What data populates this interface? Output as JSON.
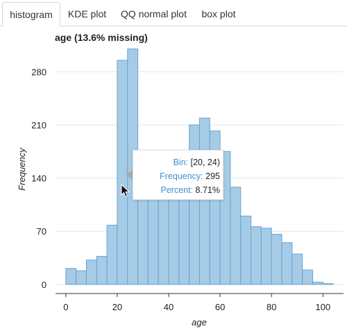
{
  "tabs": [
    {
      "label": "histogram",
      "active": true
    },
    {
      "label": "KDE plot",
      "active": false
    },
    {
      "label": "QQ normal plot",
      "active": false
    },
    {
      "label": "box plot",
      "active": false
    }
  ],
  "chart_title": "age (13.6% missing)",
  "colors": {
    "bar_fill": "#a6cbe6",
    "bar_stroke": "#6aa3cf",
    "grid": "#e6e6e6",
    "tooltip_key": "#3f8fcf"
  },
  "chart_data": {
    "type": "bar",
    "title": "age (13.6% missing)",
    "xlabel": "age",
    "ylabel": "Frequency",
    "xlim": [
      -4,
      108
    ],
    "ylim": [
      -12,
      315
    ],
    "x_ticks": [
      0,
      20,
      40,
      60,
      80,
      100
    ],
    "y_ticks": [
      0,
      70,
      140,
      210,
      280
    ],
    "grid": "horizontal",
    "bins": [
      {
        "x0": 0,
        "x1": 4,
        "value": 21
      },
      {
        "x0": 4,
        "x1": 8,
        "value": 18
      },
      {
        "x0": 8,
        "x1": 12,
        "value": 32
      },
      {
        "x0": 12,
        "x1": 16,
        "value": 37
      },
      {
        "x0": 16,
        "x1": 20,
        "value": 78
      },
      {
        "x0": 20,
        "x1": 24,
        "value": 295
      },
      {
        "x0": 24,
        "x1": 28,
        "value": 310
      },
      {
        "x0": 28,
        "x1": 32,
        "value": 160
      },
      {
        "x0": 32,
        "x1": 36,
        "value": 140
      },
      {
        "x0": 36,
        "x1": 40,
        "value": 145
      },
      {
        "x0": 40,
        "x1": 44,
        "value": 160
      },
      {
        "x0": 44,
        "x1": 48,
        "value": 165
      },
      {
        "x0": 48,
        "x1": 52,
        "value": 210
      },
      {
        "x0": 52,
        "x1": 56,
        "value": 219
      },
      {
        "x0": 56,
        "x1": 60,
        "value": 202
      },
      {
        "x0": 60,
        "x1": 64,
        "value": 175
      },
      {
        "x0": 64,
        "x1": 68,
        "value": 128
      },
      {
        "x0": 68,
        "x1": 72,
        "value": 90
      },
      {
        "x0": 72,
        "x1": 76,
        "value": 76
      },
      {
        "x0": 76,
        "x1": 80,
        "value": 74
      },
      {
        "x0": 80,
        "x1": 84,
        "value": 66
      },
      {
        "x0": 84,
        "x1": 88,
        "value": 55
      },
      {
        "x0": 88,
        "x1": 92,
        "value": 40
      },
      {
        "x0": 92,
        "x1": 96,
        "value": 19
      },
      {
        "x0": 96,
        "x1": 100,
        "value": 3
      },
      {
        "x0": 100,
        "x1": 104,
        "value": 1
      }
    ]
  },
  "tooltip": {
    "bin_key": "Bin:",
    "bin_value": "[20, 24)",
    "frequency_key": "Frequency:",
    "frequency_value": "295",
    "percent_key": "Percent:",
    "percent_value": "8.71%"
  },
  "cursor_icon": "arrow-cursor-icon"
}
